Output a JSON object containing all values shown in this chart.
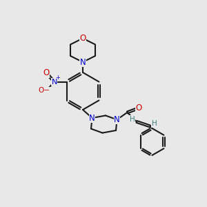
{
  "bg_color": "#e8e8e8",
  "bond_color": "#1a1a1a",
  "N_color": "#0000cc",
  "O_color": "#cc0000",
  "H_color": "#3d8080",
  "lw": 1.5,
  "figsize": [
    3.0,
    3.0
  ],
  "dpi": 100,
  "xlim": [
    0,
    10
  ],
  "ylim": [
    0,
    10
  ]
}
